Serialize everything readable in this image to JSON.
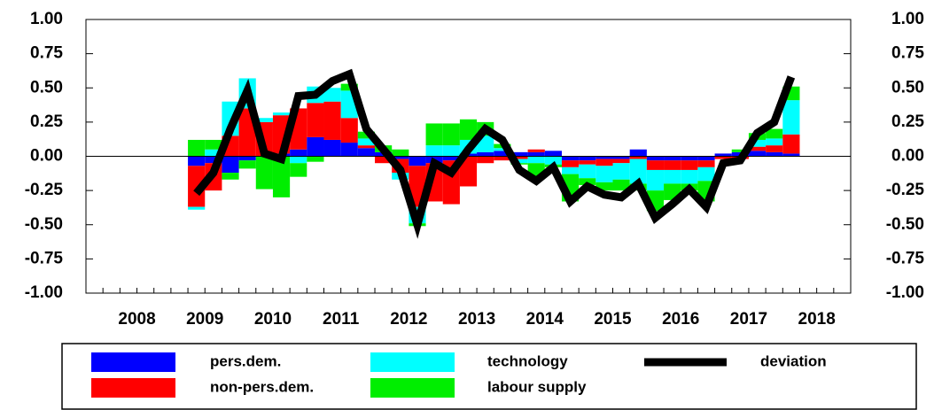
{
  "chart_data": {
    "type": "bar",
    "stacked": true,
    "categories": [
      null,
      null,
      "2008",
      null,
      null,
      null,
      "2009",
      null,
      null,
      null,
      "2010",
      null,
      null,
      null,
      "2011",
      null,
      null,
      null,
      "2012",
      null,
      null,
      null,
      "2013",
      null,
      null,
      null,
      "2014",
      null,
      null,
      null,
      "2015",
      null,
      null,
      null,
      "2016",
      null,
      null,
      null,
      "2017",
      null,
      null,
      null,
      "2018",
      null,
      null
    ],
    "series": [
      {
        "name": "pers.dem.",
        "color": "#0000ff",
        "style": "bar",
        "values": [
          null,
          null,
          null,
          null,
          null,
          null,
          -0.07,
          -0.05,
          -0.12,
          -0.03,
          0,
          0.02,
          0.05,
          0.14,
          0.12,
          0.1,
          0.06,
          0.03,
          -0.02,
          -0.07,
          -0.05,
          -0.03,
          0.02,
          0.03,
          0.04,
          0.03,
          0.03,
          0.04,
          -0.03,
          -0.03,
          -0.02,
          -0.02,
          0.05,
          -0.03,
          -0.03,
          -0.03,
          -0.03,
          0.02,
          0.03,
          0.04,
          0.03,
          0.02,
          null,
          null,
          null
        ]
      },
      {
        "name": "non-pers.dem.",
        "color": "#ff0000",
        "style": "bar",
        "values": [
          null,
          null,
          null,
          null,
          null,
          null,
          -0.3,
          -0.2,
          0.15,
          0.35,
          0.25,
          0.28,
          0.3,
          0.25,
          0.28,
          0.18,
          0.02,
          -0.05,
          -0.1,
          -0.3,
          -0.28,
          -0.32,
          -0.22,
          -0.05,
          -0.03,
          -0.02,
          0.02,
          0,
          -0.05,
          -0.03,
          -0.05,
          -0.03,
          -0.02,
          -0.07,
          -0.07,
          -0.07,
          -0.05,
          -0.02,
          -0.02,
          0.03,
          0.05,
          0.14,
          null,
          null,
          null
        ]
      },
      {
        "name": "technology",
        "color": "#00ffff",
        "style": "bar",
        "values": [
          null,
          null,
          null,
          null,
          null,
          null,
          -0.02,
          0.05,
          0.25,
          0.22,
          0.03,
          0.02,
          -0.05,
          0.12,
          0.1,
          0.2,
          0.05,
          0,
          -0.05,
          -0.12,
          0.08,
          0.08,
          0.1,
          0.12,
          0.02,
          -0.03,
          -0.05,
          -0.06,
          -0.05,
          -0.1,
          -0.12,
          -0.12,
          -0.18,
          -0.15,
          -0.1,
          -0.1,
          -0.1,
          0,
          0,
          0.05,
          0.05,
          0.25,
          null,
          null,
          null
        ]
      },
      {
        "name": "labour supply",
        "color": "#00ee00",
        "style": "bar",
        "values": [
          null,
          null,
          null,
          null,
          null,
          null,
          0.12,
          0.07,
          -0.05,
          -0.06,
          -0.24,
          -0.3,
          -0.1,
          -0.04,
          0,
          0.05,
          0.05,
          0.05,
          0.05,
          -0.02,
          0.16,
          0.16,
          0.15,
          0.1,
          0.03,
          -0.01,
          -0.1,
          -0.02,
          -0.2,
          -0.05,
          -0.06,
          -0.08,
          -0.05,
          -0.15,
          -0.12,
          -0.05,
          -0.15,
          0,
          0.02,
          0.05,
          0.07,
          0.1,
          null,
          null,
          null
        ]
      },
      {
        "name": "deviation",
        "color": "#000000",
        "style": "line",
        "values": [
          null,
          null,
          null,
          null,
          null,
          null,
          -0.27,
          -0.12,
          0.2,
          0.48,
          0.02,
          -0.02,
          0.44,
          0.45,
          0.55,
          0.6,
          0.2,
          0.05,
          -0.1,
          -0.5,
          -0.05,
          -0.12,
          0.05,
          0.2,
          0.12,
          -0.1,
          -0.18,
          -0.08,
          -0.33,
          -0.22,
          -0.28,
          -0.3,
          -0.2,
          -0.45,
          -0.35,
          -0.24,
          -0.37,
          -0.05,
          -0.03,
          0.17,
          0.25,
          0.58,
          null,
          null,
          null
        ]
      }
    ],
    "ylim": [
      -1,
      1
    ],
    "yticks": [
      {
        "value": -1,
        "label": "-1.00"
      },
      {
        "value": -0.75,
        "label": "-0.75"
      },
      {
        "value": -0.5,
        "label": "-0.50"
      },
      {
        "value": -0.25,
        "label": "-0.25"
      },
      {
        "value": 0,
        "label": "0.00"
      },
      {
        "value": 0.25,
        "label": "0.25"
      },
      {
        "value": 0.5,
        "label": "0.50"
      },
      {
        "value": 0.75,
        "label": "0.75"
      },
      {
        "value": 1,
        "label": "1.00"
      }
    ],
    "y2lim": [
      -1,
      1
    ],
    "y2ticks": [
      {
        "value": -1,
        "label": "-1.00"
      },
      {
        "value": -0.75,
        "label": "-0.75"
      },
      {
        "value": -0.5,
        "label": "-0.50"
      },
      {
        "value": -0.25,
        "label": "-0.25"
      },
      {
        "value": 0,
        "label": "0.00"
      },
      {
        "value": 0.25,
        "label": "0.25"
      },
      {
        "value": 0.5,
        "label": "0.50"
      },
      {
        "value": 0.75,
        "label": "0.75"
      },
      {
        "value": 1,
        "label": "1.00"
      }
    ],
    "grid": false
  }
}
